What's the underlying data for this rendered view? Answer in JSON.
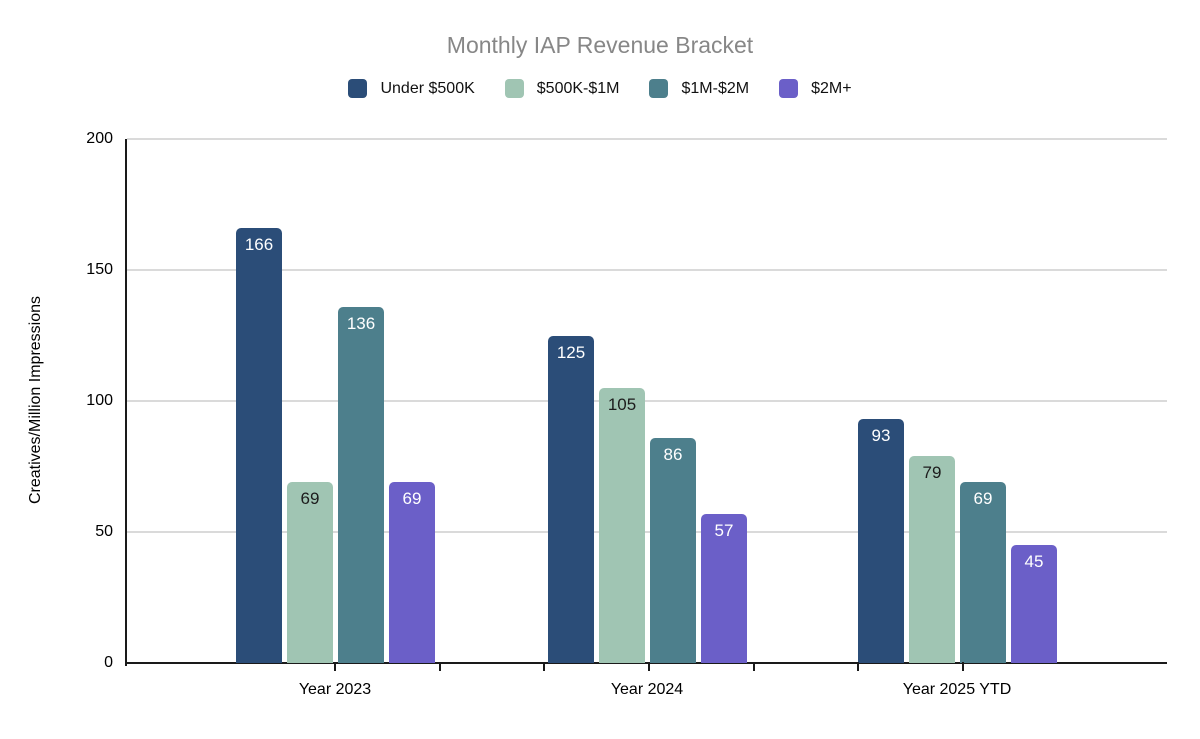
{
  "title": "Monthly IAP Revenue Bracket",
  "chart_data": {
    "type": "bar",
    "title": "Monthly IAP Revenue Bracket",
    "ylabel": "Creatives/Million Impressions",
    "xlabel": "",
    "categories": [
      "Year 2023",
      "Year 2024",
      "Year 2025 YTD"
    ],
    "series": [
      {
        "name": "Under $500K",
        "color": "#2b4d78",
        "label_color": "#ffffff",
        "values": [
          166,
          125,
          93
        ]
      },
      {
        "name": "$500K-$1M",
        "color": "#a0c5b3",
        "label_color": "#1c1c1c",
        "values": [
          69,
          105,
          79
        ]
      },
      {
        "name": "$1M-$2M",
        "color": "#4d7f8c",
        "label_color": "#ffffff",
        "values": [
          136,
          86,
          69
        ]
      },
      {
        "name": "$2M+",
        "color": "#6b5fc8",
        "label_color": "#ffffff",
        "values": [
          69,
          57,
          45
        ]
      }
    ],
    "ylim": [
      0,
      200
    ],
    "yticks": [
      0,
      50,
      100,
      150,
      200
    ],
    "grid": true,
    "legend_position": "top",
    "data_labels": true,
    "colors": {
      "title_text": "#878787",
      "gridline": "#dadada",
      "axis": "#1a1a1a",
      "tick_text": "#000000"
    }
  }
}
